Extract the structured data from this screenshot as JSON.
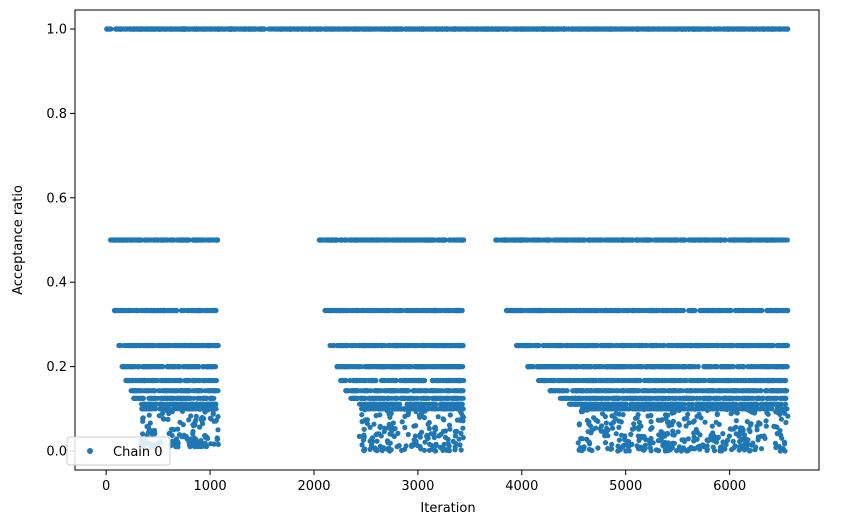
{
  "chart_data": {
    "type": "scatter",
    "xlabel": "Iteration",
    "ylabel": "Acceptance ratio",
    "xlim": [
      -300,
      6860
    ],
    "ylim": [
      -0.045,
      1.045
    ],
    "x_ticks": [
      0,
      1000,
      2000,
      3000,
      4000,
      5000,
      6000
    ],
    "y_ticks": [
      0.0,
      0.2,
      0.4,
      0.6,
      0.8,
      1.0
    ],
    "x_tick_labels": [
      "0",
      "1000",
      "2000",
      "3000",
      "4000",
      "5000",
      "6000"
    ],
    "y_tick_labels": [
      "0.0",
      "0.2",
      "0.4",
      "0.6",
      "0.8",
      "1.0"
    ],
    "grid": false,
    "legend_position": "lower left",
    "color": "#1f77b4",
    "series": [
      {
        "name": "Chain 0",
        "marker": "circle",
        "segments": [
          {
            "x_start": 0,
            "x_end": 1080,
            "description_levels": [
              1.0,
              0.5,
              0.333,
              0.25,
              0.2,
              0.167,
              0.143,
              0.125,
              0.111,
              0.1
            ],
            "low_spread_to": 0.01
          },
          {
            "x_start": 1080,
            "x_end": 2000,
            "description_levels": [
              1.0
            ]
          },
          {
            "x_start": 2000,
            "x_end": 3440,
            "description_levels": [
              1.0,
              0.5,
              0.333,
              0.25,
              0.2,
              0.167,
              0.143,
              0.125,
              0.111,
              0.1
            ],
            "low_spread_to": 0.0
          },
          {
            "x_start": 3440,
            "x_end": 3640,
            "description_levels": [
              1.0
            ]
          },
          {
            "x_start": 3640,
            "x_end": 6560,
            "description_levels": [
              1.0,
              0.5,
              0.333,
              0.25,
              0.2,
              0.167,
              0.143,
              0.125,
              0.111,
              0.1
            ],
            "low_spread_to": 0.0
          }
        ]
      }
    ]
  }
}
